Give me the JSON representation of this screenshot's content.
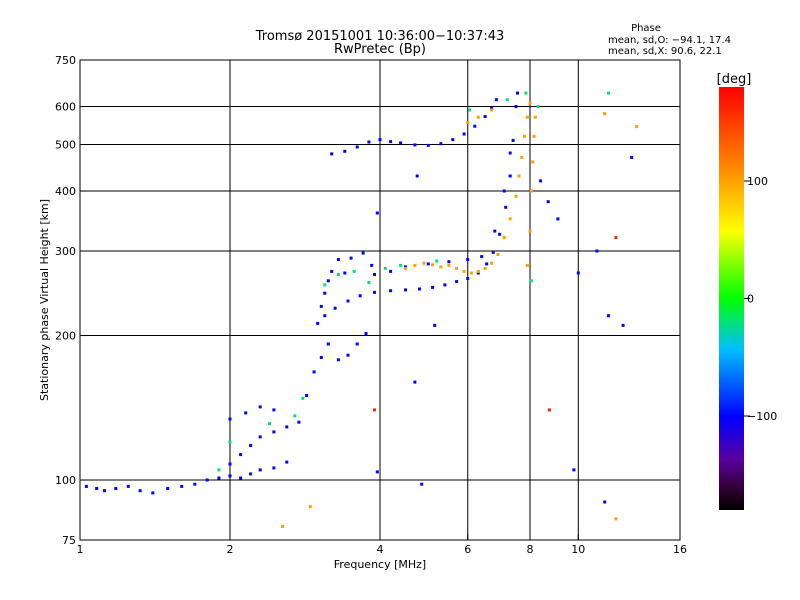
{
  "chart_data": {
    "type": "scatter",
    "title": "Tromsø 20151001 10:36:00−10:37:43",
    "subtitle": "RwPretec (Bp)",
    "xlabel": "Frequency [MHz]",
    "ylabel": "Stationary phase Virtual Height [km]",
    "x_scale": "log",
    "y_scale": "log",
    "xlim": [
      1,
      16
    ],
    "ylim": [
      75,
      750
    ],
    "x_ticks": [
      1,
      2,
      4,
      6,
      8,
      10,
      16
    ],
    "y_ticks": [
      75,
      100,
      200,
      300,
      400,
      500,
      600,
      750
    ],
    "x_grid": [
      2,
      4,
      6,
      8,
      10
    ],
    "y_grid": [
      100,
      200,
      300,
      400,
      500,
      600
    ],
    "stats": {
      "header": "Phase",
      "line_o": "mean, sd,O: −94.1, 17.4",
      "line_x": "mean, sd,X:  90.6, 22.1"
    },
    "colorbar": {
      "label": "[deg]",
      "range": [
        -180,
        180
      ],
      "ticks": [
        100,
        0,
        -100
      ],
      "tick_labels": [
        "100",
        "0",
        "−100"
      ],
      "placement": "right"
    },
    "series": [
      {
        "phase": -100,
        "points": [
          [
            1.03,
            97
          ],
          [
            1.08,
            96
          ],
          [
            1.12,
            95
          ],
          [
            1.18,
            96
          ],
          [
            1.25,
            97
          ],
          [
            1.32,
            95
          ],
          [
            1.4,
            94
          ],
          [
            1.5,
            96
          ],
          [
            1.6,
            97
          ],
          [
            1.7,
            98
          ],
          [
            1.8,
            100
          ],
          [
            1.9,
            101
          ],
          [
            2.0,
            102
          ],
          [
            2.1,
            101
          ],
          [
            2.2,
            103
          ],
          [
            2.3,
            105
          ],
          [
            2.45,
            106
          ],
          [
            2.6,
            109
          ],
          [
            2.0,
            108
          ],
          [
            2.1,
            113
          ],
          [
            2.2,
            118
          ],
          [
            2.3,
            123
          ],
          [
            2.45,
            126
          ],
          [
            2.6,
            129
          ],
          [
            2.0,
            134
          ],
          [
            2.15,
            138
          ],
          [
            2.3,
            142
          ],
          [
            2.45,
            140
          ],
          [
            2.75,
            132
          ],
          [
            2.85,
            150
          ],
          [
            2.95,
            168
          ],
          [
            3.05,
            180
          ],
          [
            3.15,
            192
          ],
          [
            3.3,
            178
          ],
          [
            3.45,
            182
          ],
          [
            3.6,
            192
          ],
          [
            3.75,
            202
          ],
          [
            3.0,
            212
          ],
          [
            3.05,
            230
          ],
          [
            3.1,
            245
          ],
          [
            3.15,
            260
          ],
          [
            3.2,
            272
          ],
          [
            3.3,
            288
          ],
          [
            3.4,
            270
          ],
          [
            3.5,
            290
          ],
          [
            3.7,
            297
          ],
          [
            3.85,
            280
          ],
          [
            3.1,
            220
          ],
          [
            3.25,
            228
          ],
          [
            3.45,
            236
          ],
          [
            3.65,
            242
          ],
          [
            3.9,
            246
          ],
          [
            4.2,
            248
          ],
          [
            4.5,
            249
          ],
          [
            4.8,
            250
          ],
          [
            5.1,
            252
          ],
          [
            5.4,
            255
          ],
          [
            5.7,
            259
          ],
          [
            6.0,
            263
          ],
          [
            6.3,
            270
          ],
          [
            6.55,
            282
          ],
          [
            6.75,
            298
          ],
          [
            6.95,
            325
          ],
          [
            7.15,
            370
          ],
          [
            7.3,
            430
          ],
          [
            7.4,
            510
          ],
          [
            7.5,
            600
          ],
          [
            7.55,
            640
          ],
          [
            3.9,
            268
          ],
          [
            4.2,
            272
          ],
          [
            4.5,
            278
          ],
          [
            5.0,
            282
          ],
          [
            5.5,
            285
          ],
          [
            6.0,
            288
          ],
          [
            6.4,
            292
          ],
          [
            6.8,
            330
          ],
          [
            7.1,
            400
          ],
          [
            7.3,
            480
          ],
          [
            3.2,
            478
          ],
          [
            3.4,
            484
          ],
          [
            3.6,
            494
          ],
          [
            3.8,
            506
          ],
          [
            4.0,
            512
          ],
          [
            4.2,
            507
          ],
          [
            4.4,
            504
          ],
          [
            4.7,
            499
          ],
          [
            5.0,
            498
          ],
          [
            5.3,
            502
          ],
          [
            5.6,
            512
          ],
          [
            5.9,
            526
          ],
          [
            6.2,
            546
          ],
          [
            6.5,
            572
          ],
          [
            6.7,
            595
          ],
          [
            6.85,
            620
          ],
          [
            3.95,
            104
          ],
          [
            4.85,
            98
          ],
          [
            4.7,
            160
          ],
          [
            5.15,
            210
          ],
          [
            3.95,
            360
          ],
          [
            4.75,
            430
          ],
          [
            8.4,
            420
          ],
          [
            8.7,
            380
          ],
          [
            9.1,
            350
          ],
          [
            9.8,
            105
          ],
          [
            10.0,
            270
          ],
          [
            10.9,
            300
          ],
          [
            11.3,
            90
          ],
          [
            11.5,
            220
          ],
          [
            12.3,
            210
          ],
          [
            12.8,
            470
          ]
        ]
      },
      {
        "phase": -20,
        "points": [
          [
            1.9,
            105
          ],
          [
            2.0,
            120
          ],
          [
            2.4,
            131
          ],
          [
            2.7,
            136
          ],
          [
            2.8,
            148
          ],
          [
            3.1,
            255
          ],
          [
            3.3,
            268
          ],
          [
            3.55,
            272
          ],
          [
            3.8,
            258
          ],
          [
            4.1,
            276
          ],
          [
            4.4,
            280
          ],
          [
            5.2,
            286
          ],
          [
            6.05,
            590
          ],
          [
            7.2,
            620
          ],
          [
            7.85,
            640
          ],
          [
            8.3,
            600
          ],
          [
            11.5,
            640
          ],
          [
            8.05,
            260
          ]
        ]
      },
      {
        "phase": 100,
        "points": [
          [
            4.5,
            276
          ],
          [
            4.7,
            280
          ],
          [
            4.9,
            283
          ],
          [
            5.1,
            281
          ],
          [
            5.3,
            278
          ],
          [
            5.5,
            280
          ],
          [
            5.7,
            276
          ],
          [
            5.9,
            272
          ],
          [
            6.1,
            270
          ],
          [
            6.3,
            272
          ],
          [
            6.5,
            276
          ],
          [
            6.7,
            283
          ],
          [
            6.9,
            295
          ],
          [
            7.1,
            320
          ],
          [
            7.3,
            350
          ],
          [
            7.5,
            390
          ],
          [
            7.6,
            430
          ],
          [
            7.7,
            470
          ],
          [
            7.8,
            520
          ],
          [
            7.9,
            570
          ],
          [
            8.0,
            610
          ],
          [
            6.0,
            556
          ],
          [
            6.3,
            570
          ],
          [
            6.7,
            590
          ],
          [
            7.9,
            280
          ],
          [
            8.0,
            330
          ],
          [
            8.05,
            400
          ],
          [
            8.1,
            460
          ],
          [
            8.15,
            520
          ],
          [
            8.2,
            570
          ],
          [
            2.55,
            80
          ],
          [
            2.9,
            88
          ],
          [
            11.3,
            580
          ],
          [
            11.9,
            83
          ],
          [
            13.1,
            545
          ]
        ]
      },
      {
        "phase": 160,
        "points": [
          [
            3.9,
            140
          ],
          [
            8.75,
            140
          ],
          [
            11.9,
            320
          ]
        ]
      }
    ]
  }
}
